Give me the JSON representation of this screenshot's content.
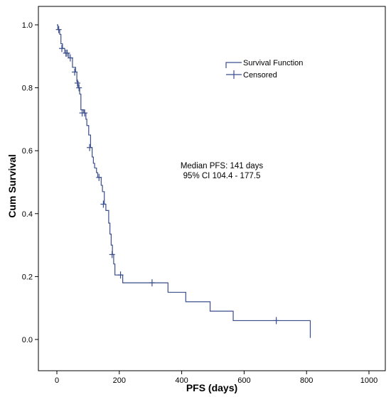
{
  "chart_data": {
    "type": "line",
    "title": "",
    "xlabel": "PFS (days)",
    "ylabel": "Cum Survival",
    "xlim": [
      0,
      1000
    ],
    "ylim": [
      0,
      1.0
    ],
    "x_ticks": [
      "0",
      "200",
      "400",
      "600",
      "800",
      "1000"
    ],
    "y_ticks": [
      "0.0",
      "0.2",
      "0.4",
      "0.6",
      "0.8",
      "1.0"
    ],
    "grid": false,
    "legend_position": "top-right",
    "legend": [
      "Survival Function",
      "Censored"
    ],
    "annotation": [
      "Median PFS: 141 days",
      "95% CI 104.4 - 177.5"
    ],
    "series": [
      {
        "name": "Survival Function",
        "step_points": [
          [
            0,
            1.0
          ],
          [
            3,
            0.985
          ],
          [
            9,
            0.97
          ],
          [
            13,
            0.94
          ],
          [
            18,
            0.925
          ],
          [
            25,
            0.91
          ],
          [
            38,
            0.895
          ],
          [
            50,
            0.865
          ],
          [
            60,
            0.85
          ],
          [
            64,
            0.82
          ],
          [
            68,
            0.8
          ],
          [
            73,
            0.78
          ],
          [
            77,
            0.73
          ],
          [
            86,
            0.72
          ],
          [
            93,
            0.7
          ],
          [
            96,
            0.68
          ],
          [
            102,
            0.65
          ],
          [
            108,
            0.61
          ],
          [
            113,
            0.58
          ],
          [
            117,
            0.56
          ],
          [
            121,
            0.545
          ],
          [
            127,
            0.53
          ],
          [
            131,
            0.515
          ],
          [
            142,
            0.49
          ],
          [
            146,
            0.47
          ],
          [
            152,
            0.43
          ],
          [
            157,
            0.41
          ],
          [
            166,
            0.37
          ],
          [
            170,
            0.335
          ],
          [
            174,
            0.3
          ],
          [
            178,
            0.27
          ],
          [
            182,
            0.24
          ],
          [
            186,
            0.205
          ],
          [
            211,
            0.18
          ],
          [
            356,
            0.15
          ],
          [
            413,
            0.12
          ],
          [
            491,
            0.09
          ],
          [
            565,
            0.06
          ],
          [
            812,
            0.005
          ]
        ],
        "censored": [
          [
            6,
            0.985
          ],
          [
            16,
            0.925
          ],
          [
            29,
            0.91
          ],
          [
            33,
            0.91
          ],
          [
            43,
            0.895
          ],
          [
            57,
            0.85
          ],
          [
            66,
            0.815
          ],
          [
            71,
            0.8
          ],
          [
            81,
            0.72
          ],
          [
            89,
            0.72
          ],
          [
            105,
            0.61
          ],
          [
            135,
            0.515
          ],
          [
            149,
            0.43
          ],
          [
            177,
            0.27
          ],
          [
            204,
            0.205
          ],
          [
            305,
            0.18
          ],
          [
            703,
            0.06
          ]
        ]
      }
    ]
  }
}
